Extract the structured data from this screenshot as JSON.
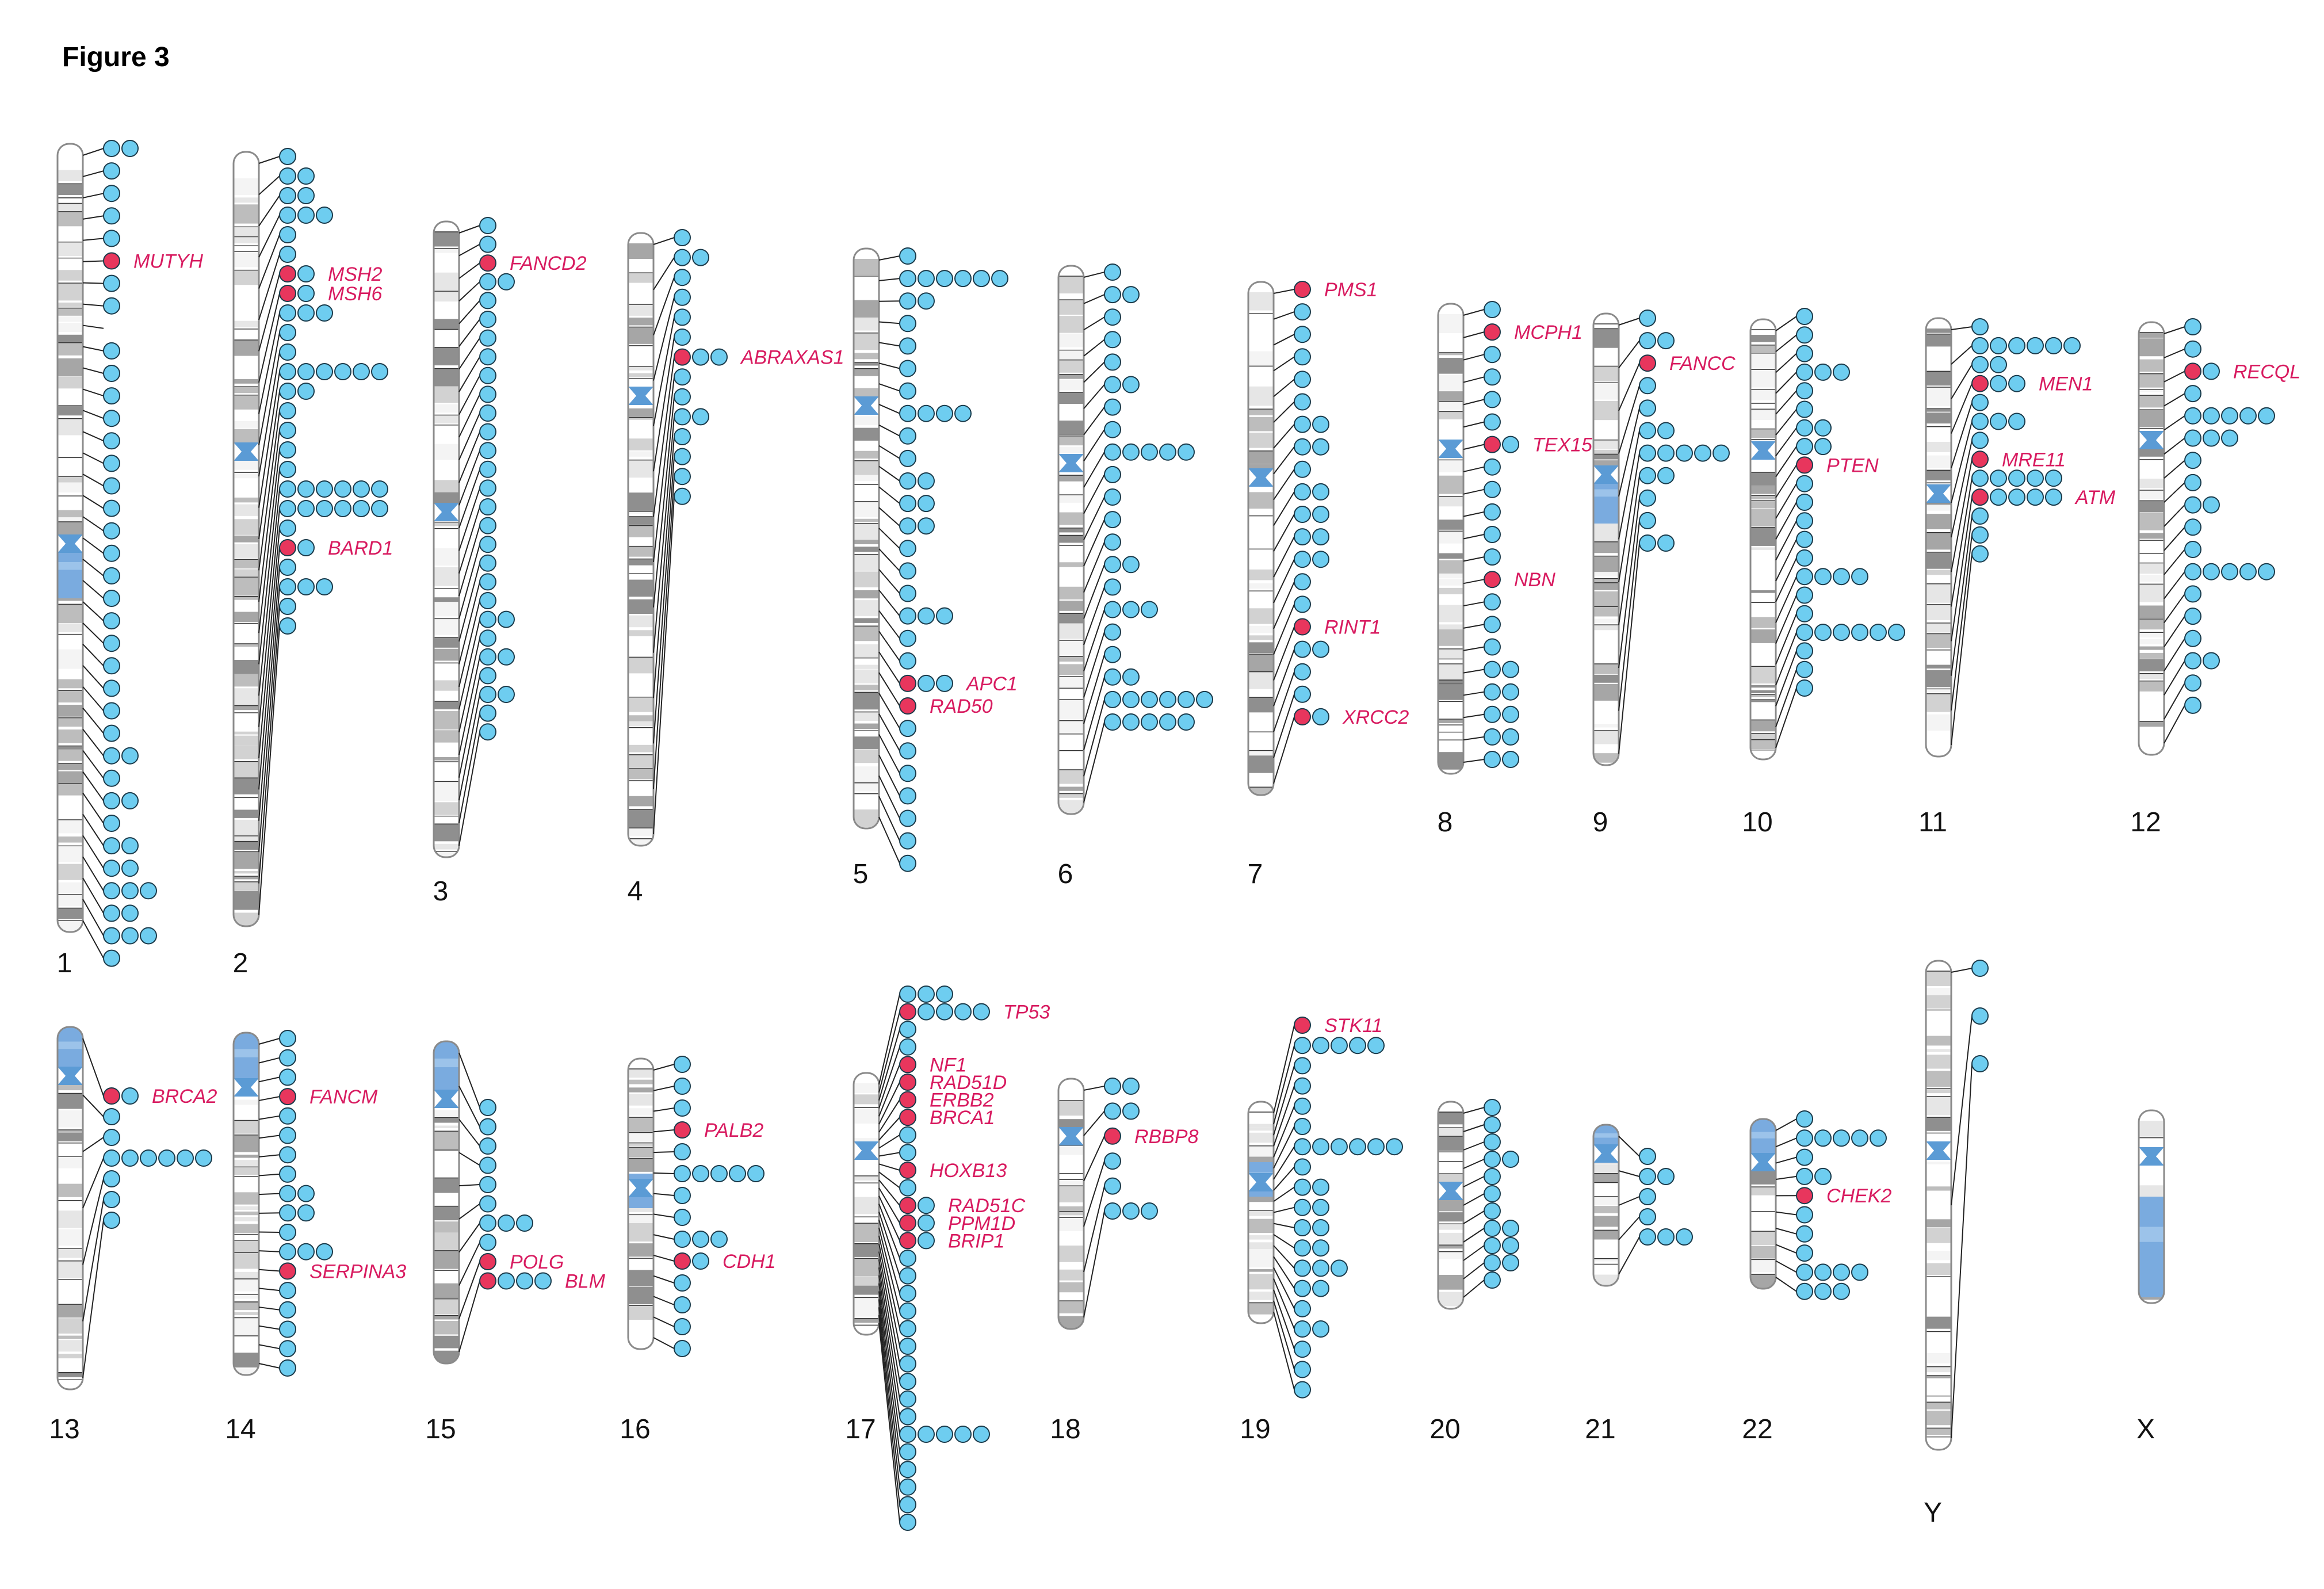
{
  "figure_title": "Figure 3",
  "colors": {
    "highlight": "#e8365d",
    "marker": "#6ecdf0",
    "marker_stroke": "#1a3a4a",
    "label": "#d81b60",
    "centromere": "#5b9bd5",
    "heterochromatin": "#7aabdf",
    "outline": "#8a8a8a"
  },
  "chromosomes": [
    {
      "name": "1",
      "markers": [
        2,
        1,
        1,
        1,
        1,
        1,
        1,
        1,
        0,
        1,
        1,
        1,
        1,
        1,
        1,
        1,
        1,
        1,
        1,
        1,
        1,
        1,
        1,
        1,
        1,
        1,
        1,
        2,
        1,
        2,
        1,
        2,
        2,
        3,
        2,
        3,
        1
      ],
      "labels": [
        {
          "i": 5,
          "gene": "MUTYH"
        }
      ]
    },
    {
      "name": "2",
      "markers": [
        1,
        2,
        2,
        3,
        1,
        1,
        2,
        2,
        3,
        1,
        1,
        6,
        2,
        1,
        1,
        1,
        1,
        6,
        6,
        1,
        2,
        1,
        3,
        1,
        1
      ],
      "labels": [
        {
          "i": 6,
          "gene": "MSH2"
        },
        {
          "i": 7,
          "gene": "MSH6"
        },
        {
          "i": 20,
          "gene": "BARD1"
        }
      ]
    },
    {
      "name": "3",
      "markers": [
        1,
        1,
        1,
        2,
        1,
        1,
        1,
        1,
        1,
        1,
        1,
        1,
        1,
        1,
        1,
        1,
        1,
        1,
        1,
        1,
        1,
        2,
        1,
        2,
        1,
        2,
        1,
        1
      ],
      "labels": [
        {
          "i": 2,
          "gene": "FANCD2"
        }
      ]
    },
    {
      "name": "4",
      "markers": [
        1,
        2,
        1,
        1,
        1,
        1,
        3,
        1,
        1,
        2,
        1,
        1,
        1,
        1
      ],
      "labels": [
        {
          "i": 6,
          "gene": "ABRAXAS1"
        }
      ]
    },
    {
      "name": "5",
      "markers": [
        1,
        6,
        2,
        1,
        1,
        1,
        1,
        4,
        1,
        1,
        2,
        2,
        2,
        1,
        1,
        1,
        3,
        1,
        1,
        3,
        1,
        1,
        1,
        1,
        1,
        1,
        1,
        1
      ],
      "labels": [
        {
          "i": 19,
          "gene": "APC1"
        },
        {
          "i": 20,
          "gene": "RAD50"
        }
      ]
    },
    {
      "name": "6",
      "markers": [
        1,
        2,
        1,
        1,
        1,
        2,
        1,
        1,
        5,
        1,
        1,
        1,
        1,
        2,
        1,
        3,
        1,
        1,
        2,
        6,
        5
      ],
      "labels": []
    },
    {
      "name": "7",
      "markers": [
        1,
        1,
        1,
        1,
        1,
        1,
        2,
        2,
        1,
        2,
        2,
        2,
        2,
        1,
        1,
        1,
        2,
        1,
        1,
        2
      ],
      "labels": [
        {
          "i": 0,
          "gene": "PMS1"
        },
        {
          "i": 15,
          "gene": "RINT1"
        },
        {
          "i": 19,
          "gene": "XRCC2"
        }
      ]
    },
    {
      "name": "8",
      "markers": [
        1,
        1,
        1,
        1,
        1,
        1,
        2,
        1,
        1,
        1,
        1,
        1,
        1,
        1,
        1,
        1,
        2,
        2,
        2,
        2,
        2
      ],
      "labels": [
        {
          "i": 1,
          "gene": "MCPH1"
        },
        {
          "i": 6,
          "gene": "TEX15"
        },
        {
          "i": 12,
          "gene": "NBN"
        }
      ]
    },
    {
      "name": "9",
      "markers": [
        1,
        2,
        1,
        1,
        1,
        2,
        5,
        2,
        1,
        1,
        2
      ],
      "labels": [
        {
          "i": 2,
          "gene": "FANCC"
        }
      ]
    },
    {
      "name": "10",
      "markers": [
        1,
        1,
        1,
        3,
        1,
        1,
        2,
        2,
        1,
        1,
        1,
        1,
        1,
        1,
        4,
        1,
        1,
        6,
        1,
        1,
        1
      ],
      "labels": [
        {
          "i": 8,
          "gene": "PTEN"
        }
      ]
    },
    {
      "name": "11",
      "markers": [
        1,
        6,
        2,
        3,
        1,
        3,
        1,
        1,
        5,
        5,
        1,
        1,
        1
      ],
      "labels": [
        {
          "i": 3,
          "gene": "MEN1"
        },
        {
          "i": 7,
          "gene": "MRE11"
        },
        {
          "i": 9,
          "gene": "ATM"
        }
      ]
    },
    {
      "name": "12",
      "markers": [
        1,
        1,
        2,
        1,
        5,
        3,
        1,
        1,
        2,
        1,
        1,
        5,
        1,
        1,
        1,
        2,
        1,
        1
      ],
      "labels": [
        {
          "i": 2,
          "gene": "RECQL"
        }
      ]
    },
    {
      "name": "13",
      "markers": [
        2,
        1,
        1,
        6,
        1,
        1,
        1
      ],
      "labels": [
        {
          "i": 0,
          "gene": "BRCA2"
        }
      ]
    },
    {
      "name": "14",
      "markers": [
        1,
        1,
        1,
        1,
        1,
        1,
        1,
        1,
        2,
        2,
        1,
        3,
        1,
        1,
        1,
        1,
        1,
        1
      ],
      "labels": [
        {
          "i": 3,
          "gene": "FANCM"
        },
        {
          "i": 12,
          "gene": "SERPINA3"
        }
      ]
    },
    {
      "name": "15",
      "markers": [
        1,
        1,
        1,
        1,
        1,
        1,
        3,
        1,
        1,
        4
      ],
      "labels": [
        {
          "i": 8,
          "gene": "POLG"
        },
        {
          "i": 9,
          "gene": "BLM"
        }
      ]
    },
    {
      "name": "16",
      "markers": [
        1,
        1,
        1,
        1,
        1,
        5,
        1,
        1,
        3,
        2,
        1,
        1,
        1,
        1
      ],
      "labels": [
        {
          "i": 3,
          "gene": "PALB2"
        },
        {
          "i": 9,
          "gene": "CDH1"
        }
      ]
    },
    {
      "name": "17",
      "markers": [
        3,
        5,
        1,
        1,
        1,
        1,
        1,
        1,
        1,
        1,
        1,
        1,
        2,
        2,
        2,
        1,
        1,
        1,
        1,
        1,
        1,
        1,
        1,
        1,
        1,
        5,
        1,
        1,
        1,
        1,
        1
      ],
      "labels": [
        {
          "i": 1,
          "gene": "TP53"
        },
        {
          "i": 4,
          "gene": "NF1"
        },
        {
          "i": 5,
          "gene": "RAD51D"
        },
        {
          "i": 6,
          "gene": "ERBB2"
        },
        {
          "i": 7,
          "gene": "BRCA1"
        },
        {
          "i": 10,
          "gene": "HOXB13"
        },
        {
          "i": 12,
          "gene": "RAD51C"
        },
        {
          "i": 13,
          "gene": "PPM1D"
        },
        {
          "i": 14,
          "gene": "BRIP1"
        }
      ]
    },
    {
      "name": "18",
      "markers": [
        2,
        2,
        1,
        1,
        1,
        3
      ],
      "labels": [
        {
          "i": 2,
          "gene": "RBBP8"
        }
      ]
    },
    {
      "name": "19",
      "markers": [
        1,
        5,
        1,
        1,
        1,
        1,
        6,
        1,
        2,
        2,
        2,
        2,
        3,
        2,
        1,
        2,
        1,
        1,
        1
      ],
      "labels": [
        {
          "i": 0,
          "gene": "STK11"
        }
      ]
    },
    {
      "name": "20",
      "markers": [
        1,
        1,
        1,
        2,
        1,
        1,
        1,
        2,
        2,
        2,
        1
      ],
      "labels": []
    },
    {
      "name": "21",
      "markers": [
        1,
        2,
        1,
        1,
        3
      ],
      "labels": []
    },
    {
      "name": "22",
      "markers": [
        1,
        5,
        1,
        2,
        1,
        1,
        1,
        1,
        4,
        3
      ],
      "labels": [
        {
          "i": 4,
          "gene": "CHEK2"
        }
      ]
    },
    {
      "name": "Y",
      "markers": [
        1,
        1,
        1
      ],
      "labels": []
    },
    {
      "name": "X",
      "markers": [],
      "labels": []
    }
  ]
}
